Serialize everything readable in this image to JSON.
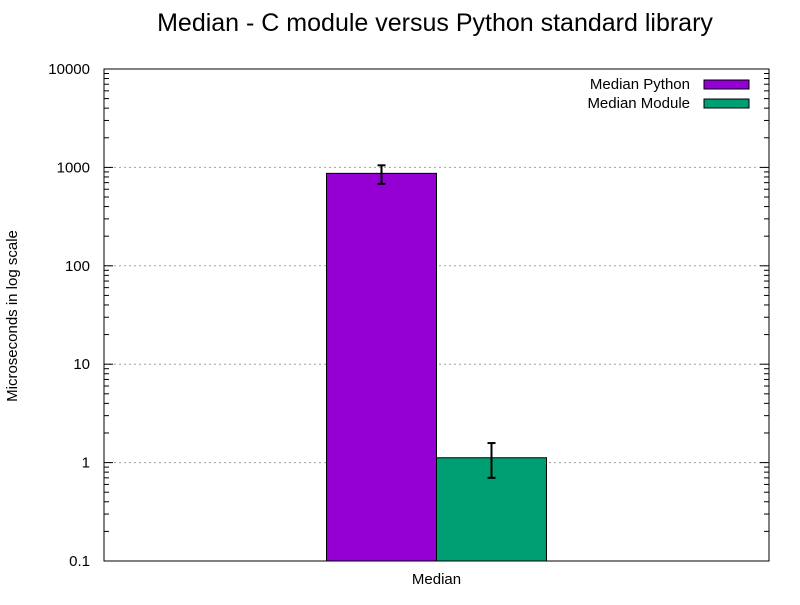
{
  "chart_data": {
    "type": "bar",
    "title": "Median - C module versus Python standard library",
    "xlabel": "",
    "ylabel": "Microseconds in log scale",
    "yscale": "log",
    "ylim": [
      0.1,
      10000
    ],
    "yticks": [
      "0.1",
      "1",
      "10",
      "100",
      "1000",
      "10000"
    ],
    "categories": [
      "Median"
    ],
    "grid": true,
    "legend_position": "top-right",
    "series": [
      {
        "name": "Median Python",
        "color": "#9400D3",
        "values": [
          870
        ],
        "error_low": [
          680
        ],
        "error_high": [
          1050
        ]
      },
      {
        "name": "Median Module",
        "color": "#009E73",
        "values": [
          1.12
        ],
        "error_low": [
          0.7
        ],
        "error_high": [
          1.58
        ]
      }
    ]
  }
}
